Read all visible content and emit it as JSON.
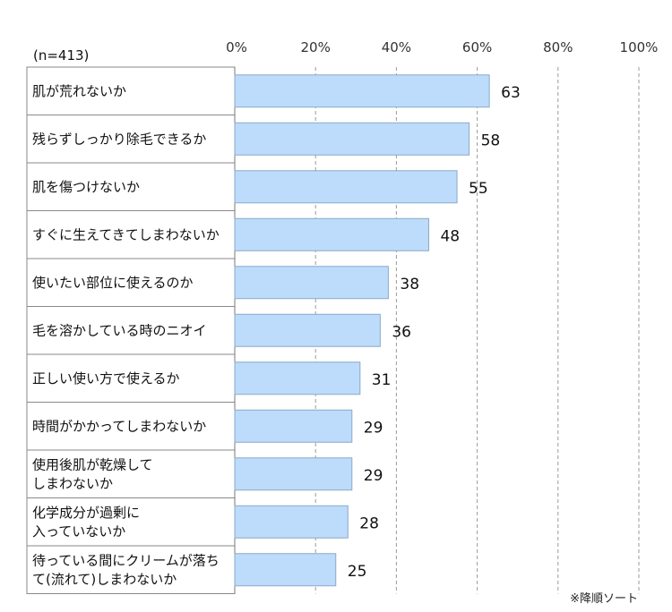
{
  "chart_data": {
    "type": "bar",
    "orientation": "horizontal",
    "sample_note": "(n=413)",
    "footnote": "※降順ソート",
    "categories": [
      [
        "肌が荒れないか"
      ],
      [
        "残らずしっかり除毛できるか"
      ],
      [
        "肌を傷つけないか"
      ],
      [
        "すぐに生えてきてしまわないか"
      ],
      [
        "使いたい部位に使えるのか"
      ],
      [
        "毛を溶かしている時のニオイ"
      ],
      [
        "正しい使い方で使えるか"
      ],
      [
        "時間がかかってしまわないか"
      ],
      [
        "使用後肌が乾燥して",
        "しまわないか"
      ],
      [
        "化学成分が過剰に",
        "入っていないか"
      ],
      [
        "待っている間にクリームが落ち",
        "て(流れて)しまわないか"
      ]
    ],
    "values": [
      63,
      58,
      55,
      48,
      38,
      36,
      31,
      29,
      29,
      28,
      25
    ],
    "xlim": [
      0,
      100
    ],
    "ticks": [
      "0%",
      "20%",
      "40%",
      "60%",
      "80%",
      "100%"
    ],
    "grid": true,
    "bar_color": "#bddcfb",
    "bar_border": "#8aa9c8"
  }
}
